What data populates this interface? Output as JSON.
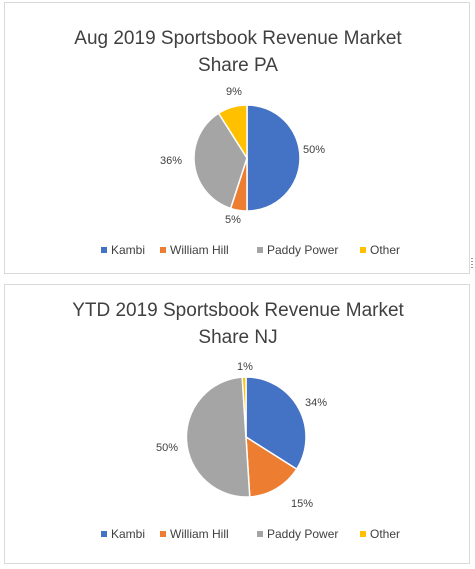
{
  "colors": {
    "Kambi": "#4472c4",
    "William Hill": "#ed7d31",
    "Paddy Power": "#a5a5a5",
    "Other": "#ffc000"
  },
  "chart_data": [
    {
      "type": "pie",
      "title": "Aug 2019 Sportsbook Revenue Market Share PA",
      "title_lines": [
        "Aug 2019 Sportsbook Revenue Market",
        "Share PA"
      ],
      "categories": [
        "Kambi",
        "William Hill",
        "Paddy Power",
        "Other"
      ],
      "values": [
        50,
        5,
        36,
        9
      ],
      "labels": [
        "50%",
        "5%",
        "36%",
        "9%"
      ],
      "legend": [
        "Kambi",
        "William Hill",
        "Paddy Power",
        "Other"
      ],
      "legend_position": "bottom"
    },
    {
      "type": "pie",
      "title": "YTD 2019 Sportsbook Revenue Market Share NJ",
      "title_lines": [
        "YTD 2019 Sportsbook Revenue Market",
        "Share NJ"
      ],
      "categories": [
        "Kambi",
        "William Hill",
        "Paddy Power",
        "Other"
      ],
      "values": [
        34,
        15,
        50,
        1
      ],
      "labels": [
        "34%",
        "15%",
        "50%",
        "1%"
      ],
      "legend": [
        "Kambi",
        "William Hill",
        "Paddy Power",
        "Other"
      ],
      "legend_position": "bottom"
    }
  ]
}
